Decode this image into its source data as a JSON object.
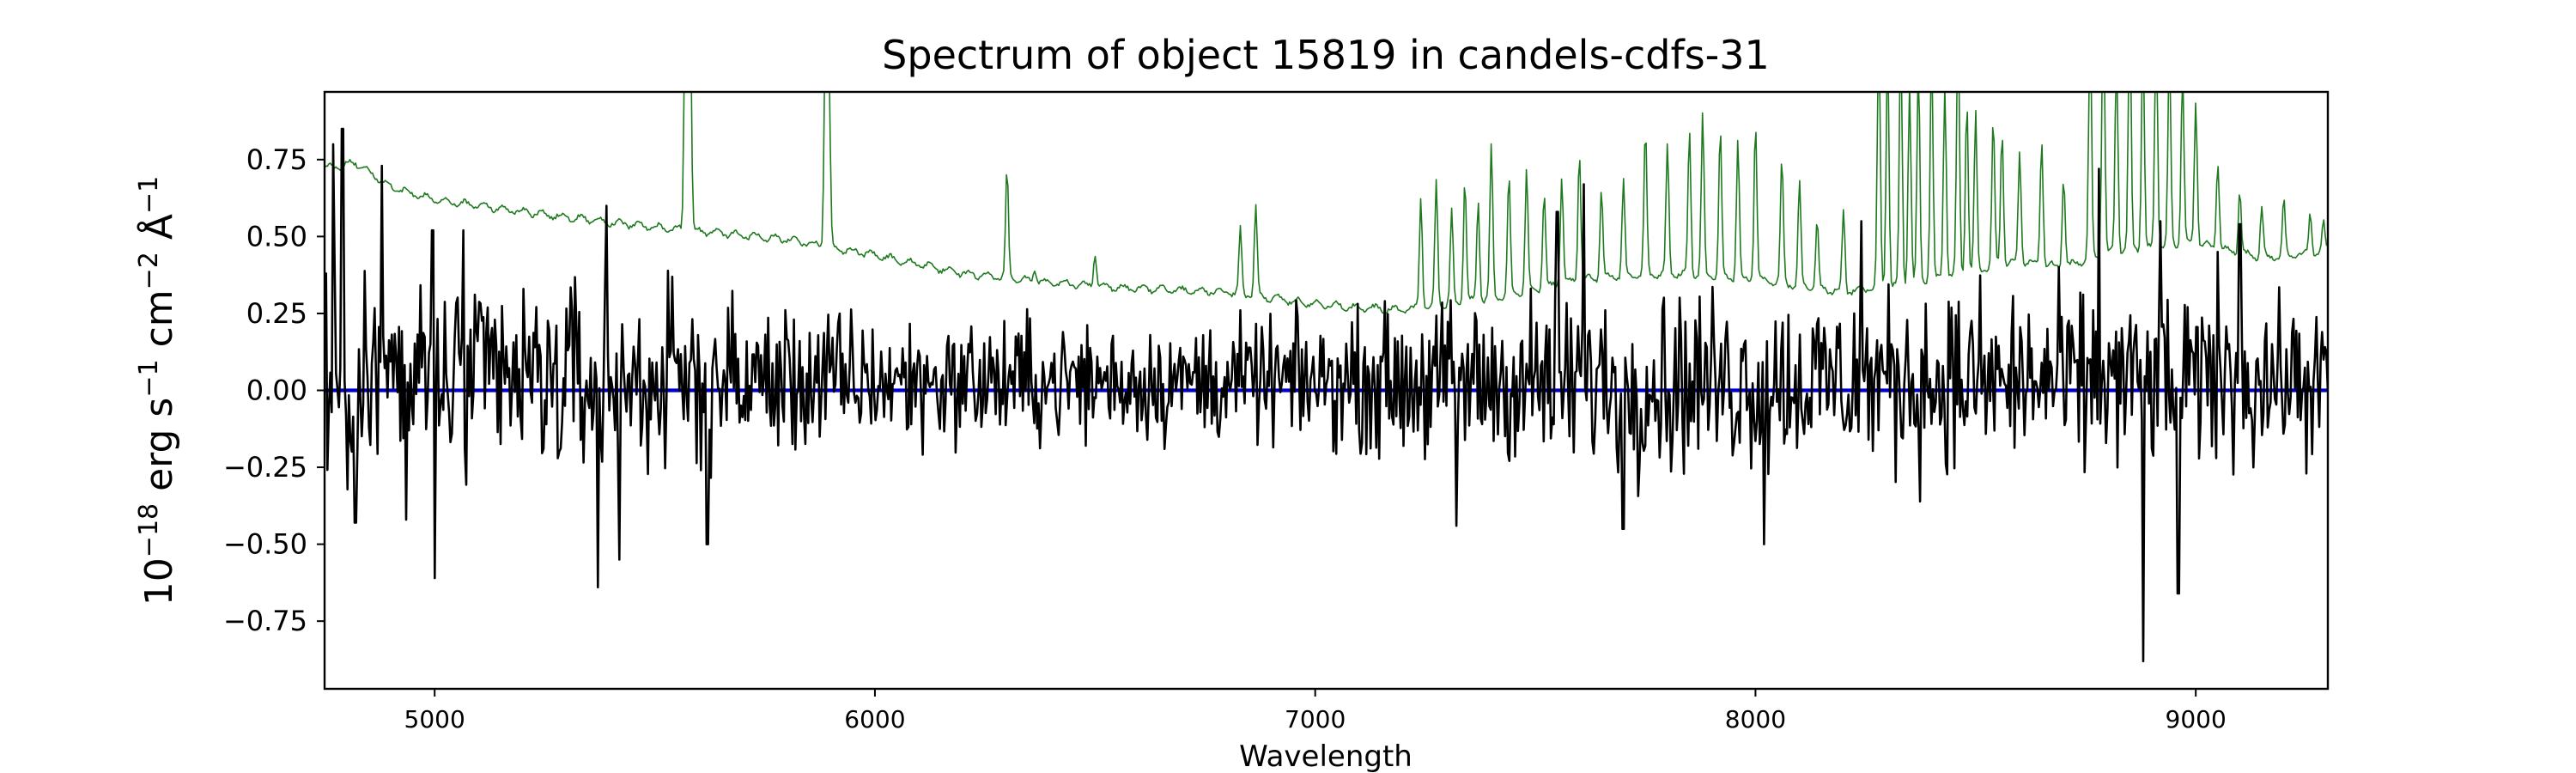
{
  "chart_data": {
    "type": "line",
    "title": "Spectrum of object 15819 in candels-cdfs-31",
    "xlabel": "Wavelength",
    "ylabel": {
      "base": "10",
      "exp1": "−18",
      "erg": " erg s",
      "exp2": "−1",
      "cm": " cm",
      "exp3": "−2",
      "ang": " Å",
      "exp4": "−1"
    },
    "xlim": [
      4750,
      9300
    ],
    "ylim": [
      -0.97,
      0.97
    ],
    "x_ticks": [
      5000,
      6000,
      7000,
      8000,
      9000
    ],
    "x_tick_labels": [
      "5000",
      "6000",
      "7000",
      "8000",
      "9000"
    ],
    "y_ticks": [
      0.75,
      0.5,
      0.25,
      0.0,
      -0.25,
      -0.5,
      -0.75
    ],
    "y_tick_labels": [
      "0.75",
      "0.50",
      "0.25",
      "0.00",
      "−0.25",
      "−0.50",
      "−0.75"
    ],
    "grid": false,
    "legend": "none",
    "series": [
      {
        "role": "flux",
        "color": "#000000",
        "x_start": 4750,
        "x_end": 9300,
        "noise_points": 1400,
        "envelope": [
          [
            4750,
            0.4
          ],
          [
            5000,
            0.35
          ],
          [
            5400,
            0.32
          ],
          [
            6000,
            0.22
          ],
          [
            6500,
            0.2
          ],
          [
            7000,
            0.2
          ],
          [
            7300,
            0.27
          ],
          [
            7600,
            0.3
          ],
          [
            8000,
            0.3
          ],
          [
            8500,
            0.3
          ],
          [
            9000,
            0.28
          ],
          [
            9300,
            0.25
          ]
        ],
        "features": [
          [
            4770,
            0.8
          ],
          [
            4790,
            0.85
          ],
          [
            4820,
            -0.43
          ],
          [
            4880,
            0.73
          ],
          [
            4935,
            -0.42
          ],
          [
            4995,
            0.52
          ],
          [
            5000,
            -0.61
          ],
          [
            5065,
            0.52
          ],
          [
            5370,
            -0.64
          ],
          [
            5390,
            0.6
          ],
          [
            5420,
            -0.55
          ],
          [
            5620,
            -0.5
          ],
          [
            7320,
            -0.44
          ],
          [
            7550,
            0.58
          ],
          [
            7610,
            0.67
          ],
          [
            7700,
            -0.45
          ],
          [
            8020,
            -0.5
          ],
          [
            8240,
            0.55
          ],
          [
            8780,
            0.72
          ],
          [
            8880,
            -0.88
          ],
          [
            8920,
            0.55
          ],
          [
            8960,
            -0.66
          ],
          [
            9050,
            0.45
          ],
          [
            9100,
            0.54
          ]
        ]
      },
      {
        "role": "error",
        "color": "#1f7a1f",
        "baseline": [
          [
            4750,
            0.72
          ],
          [
            4820,
            0.74
          ],
          [
            4900,
            0.66
          ],
          [
            5000,
            0.62
          ],
          [
            5200,
            0.58
          ],
          [
            5500,
            0.53
          ],
          [
            5800,
            0.49
          ],
          [
            6000,
            0.44
          ],
          [
            6200,
            0.38
          ],
          [
            6400,
            0.35
          ],
          [
            6600,
            0.33
          ],
          [
            6800,
            0.32
          ],
          [
            7000,
            0.28
          ],
          [
            7200,
            0.26
          ],
          [
            7400,
            0.3
          ],
          [
            7600,
            0.36
          ],
          [
            7800,
            0.38
          ],
          [
            8000,
            0.36
          ],
          [
            8200,
            0.32
          ],
          [
            8400,
            0.36
          ],
          [
            8600,
            0.42
          ],
          [
            8700,
            0.4
          ],
          [
            8800,
            0.45
          ],
          [
            9000,
            0.48
          ],
          [
            9150,
            0.43
          ],
          [
            9300,
            0.45
          ]
        ],
        "spikes": [
          [
            5570,
            1.4
          ],
          [
            5580,
            1.3
          ],
          [
            5888,
            1.2
          ],
          [
            5895,
            1.1
          ],
          [
            6300,
            0.72
          ],
          [
            6363,
            0.4
          ],
          [
            6500,
            0.45
          ],
          [
            6830,
            0.52
          ],
          [
            6865,
            0.6
          ],
          [
            7240,
            0.63
          ],
          [
            7275,
            0.68
          ],
          [
            7310,
            0.58
          ],
          [
            7340,
            0.7
          ],
          [
            7370,
            0.62
          ],
          [
            7400,
            0.8
          ],
          [
            7440,
            0.7
          ],
          [
            7480,
            0.72
          ],
          [
            7520,
            0.65
          ],
          [
            7560,
            0.7
          ],
          [
            7600,
            0.78
          ],
          [
            7650,
            0.66
          ],
          [
            7700,
            0.68
          ],
          [
            7750,
            0.85
          ],
          [
            7800,
            0.8
          ],
          [
            7850,
            0.85
          ],
          [
            7880,
            0.9
          ],
          [
            7920,
            0.86
          ],
          [
            7960,
            0.82
          ],
          [
            8000,
            0.88
          ],
          [
            8060,
            0.75
          ],
          [
            8100,
            0.68
          ],
          [
            8140,
            0.55
          ],
          [
            8200,
            0.58
          ],
          [
            8280,
            1.2
          ],
          [
            8300,
            1.1
          ],
          [
            8330,
            1.15
          ],
          [
            8350,
            1.0
          ],
          [
            8370,
            1.05
          ],
          [
            8400,
            1.1
          ],
          [
            8430,
            1.0
          ],
          [
            8460,
            1.2
          ],
          [
            8480,
            0.95
          ],
          [
            8500,
            0.9
          ],
          [
            8540,
            0.88
          ],
          [
            8560,
            0.85
          ],
          [
            8600,
            0.78
          ],
          [
            8650,
            0.82
          ],
          [
            8700,
            0.7
          ],
          [
            8760,
            1.2
          ],
          [
            8790,
            1.3
          ],
          [
            8820,
            1.1
          ],
          [
            8850,
            1.25
          ],
          [
            8880,
            1.15
          ],
          [
            8910,
            1.2
          ],
          [
            8940,
            1.1
          ],
          [
            8970,
            1.05
          ],
          [
            9000,
            0.95
          ],
          [
            9050,
            0.75
          ],
          [
            9100,
            0.65
          ],
          [
            9150,
            0.6
          ],
          [
            9200,
            0.62
          ],
          [
            9260,
            0.58
          ],
          [
            9290,
            0.55
          ]
        ]
      },
      {
        "role": "zero-line",
        "color": "#0000cc",
        "x": [
          4750,
          9300
        ],
        "y": [
          0.0,
          0.0
        ]
      }
    ]
  }
}
